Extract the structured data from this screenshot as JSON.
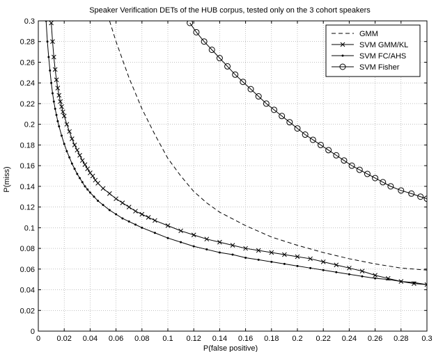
{
  "chart_data": {
    "type": "line",
    "title": "Speaker Verification DETs of the HUB corpus, tested only on the 3 cohort speakers",
    "xlabel": "P(false positive)",
    "ylabel": "P(miss)",
    "xlim": [
      0,
      0.3
    ],
    "ylim": [
      0,
      0.3
    ],
    "xticks": [
      "0",
      "0.02",
      "0.04",
      "0.06",
      "0.08",
      "0.1",
      "0.12",
      "0.14",
      "0.16",
      "0.18",
      "0.2",
      "0.22",
      "0.24",
      "0.26",
      "0.28",
      "0.3"
    ],
    "yticks": [
      "0",
      "0.02",
      "0.04",
      "0.06",
      "0.08",
      "0.1",
      "0.12",
      "0.14",
      "0.16",
      "0.18",
      "0.2",
      "0.22",
      "0.24",
      "0.26",
      "0.28",
      "0.3"
    ],
    "grid": true,
    "legend_position": "top-right",
    "series": [
      {
        "name": "GMM",
        "style": "dashed",
        "marker": "none",
        "points": [
          [
            0.055,
            0.3
          ],
          [
            0.06,
            0.28
          ],
          [
            0.07,
            0.245
          ],
          [
            0.08,
            0.215
          ],
          [
            0.09,
            0.19
          ],
          [
            0.1,
            0.167
          ],
          [
            0.11,
            0.15
          ],
          [
            0.12,
            0.135
          ],
          [
            0.13,
            0.124
          ],
          [
            0.14,
            0.115
          ],
          [
            0.16,
            0.102
          ],
          [
            0.18,
            0.091
          ],
          [
            0.2,
            0.083
          ],
          [
            0.22,
            0.076
          ],
          [
            0.24,
            0.07
          ],
          [
            0.26,
            0.065
          ],
          [
            0.28,
            0.061
          ],
          [
            0.3,
            0.059
          ]
        ]
      },
      {
        "name": "SVM GMM/KL",
        "style": "solid",
        "marker": "x",
        "points": [
          [
            0.01,
            0.298
          ],
          [
            0.011,
            0.28
          ],
          [
            0.012,
            0.265
          ],
          [
            0.013,
            0.253
          ],
          [
            0.014,
            0.243
          ],
          [
            0.015,
            0.235
          ],
          [
            0.016,
            0.228
          ],
          [
            0.017,
            0.222
          ],
          [
            0.018,
            0.217
          ],
          [
            0.019,
            0.212
          ],
          [
            0.02,
            0.208
          ],
          [
            0.022,
            0.2
          ],
          [
            0.024,
            0.193
          ],
          [
            0.026,
            0.186
          ],
          [
            0.028,
            0.18
          ],
          [
            0.03,
            0.175
          ],
          [
            0.032,
            0.17
          ],
          [
            0.034,
            0.165
          ],
          [
            0.036,
            0.161
          ],
          [
            0.038,
            0.157
          ],
          [
            0.04,
            0.153
          ],
          [
            0.042,
            0.15
          ],
          [
            0.044,
            0.146
          ],
          [
            0.046,
            0.143
          ],
          [
            0.05,
            0.138
          ],
          [
            0.055,
            0.133
          ],
          [
            0.06,
            0.128
          ],
          [
            0.065,
            0.124
          ],
          [
            0.07,
            0.12
          ],
          [
            0.075,
            0.116
          ],
          [
            0.08,
            0.113
          ],
          [
            0.085,
            0.11
          ],
          [
            0.09,
            0.107
          ],
          [
            0.1,
            0.102
          ],
          [
            0.11,
            0.097
          ],
          [
            0.12,
            0.093
          ],
          [
            0.13,
            0.089
          ],
          [
            0.14,
            0.086
          ],
          [
            0.15,
            0.083
          ],
          [
            0.16,
            0.08
          ],
          [
            0.17,
            0.078
          ],
          [
            0.18,
            0.076
          ],
          [
            0.19,
            0.074
          ],
          [
            0.2,
            0.072
          ],
          [
            0.21,
            0.07
          ],
          [
            0.22,
            0.067
          ],
          [
            0.23,
            0.064
          ],
          [
            0.24,
            0.061
          ],
          [
            0.25,
            0.058
          ],
          [
            0.26,
            0.054
          ],
          [
            0.27,
            0.051
          ],
          [
            0.28,
            0.048
          ],
          [
            0.29,
            0.046
          ],
          [
            0.3,
            0.045
          ]
        ]
      },
      {
        "name": "SVM FC/AHS",
        "style": "solid",
        "marker": "dot",
        "points": [
          [
            0.006,
            0.3
          ],
          [
            0.007,
            0.28
          ],
          [
            0.008,
            0.265
          ],
          [
            0.009,
            0.252
          ],
          [
            0.01,
            0.24
          ],
          [
            0.011,
            0.23
          ],
          [
            0.012,
            0.222
          ],
          [
            0.013,
            0.215
          ],
          [
            0.014,
            0.209
          ],
          [
            0.015,
            0.203
          ],
          [
            0.016,
            0.198
          ],
          [
            0.018,
            0.189
          ],
          [
            0.02,
            0.181
          ],
          [
            0.022,
            0.174
          ],
          [
            0.024,
            0.168
          ],
          [
            0.026,
            0.162
          ],
          [
            0.028,
            0.157
          ],
          [
            0.03,
            0.152
          ],
          [
            0.032,
            0.148
          ],
          [
            0.034,
            0.144
          ],
          [
            0.036,
            0.14
          ],
          [
            0.038,
            0.137
          ],
          [
            0.04,
            0.134
          ],
          [
            0.043,
            0.13
          ],
          [
            0.046,
            0.126
          ],
          [
            0.05,
            0.122
          ],
          [
            0.055,
            0.117
          ],
          [
            0.06,
            0.113
          ],
          [
            0.065,
            0.109
          ],
          [
            0.07,
            0.106
          ],
          [
            0.075,
            0.103
          ],
          [
            0.08,
            0.1
          ],
          [
            0.09,
            0.095
          ],
          [
            0.1,
            0.09
          ],
          [
            0.11,
            0.086
          ],
          [
            0.12,
            0.082
          ],
          [
            0.13,
            0.079
          ],
          [
            0.14,
            0.076
          ],
          [
            0.15,
            0.074
          ],
          [
            0.16,
            0.071
          ],
          [
            0.17,
            0.069
          ],
          [
            0.18,
            0.067
          ],
          [
            0.19,
            0.065
          ],
          [
            0.2,
            0.063
          ],
          [
            0.21,
            0.061
          ],
          [
            0.22,
            0.059
          ],
          [
            0.23,
            0.057
          ],
          [
            0.24,
            0.055
          ],
          [
            0.25,
            0.053
          ],
          [
            0.26,
            0.051
          ],
          [
            0.27,
            0.05
          ],
          [
            0.28,
            0.048
          ],
          [
            0.29,
            0.047
          ],
          [
            0.3,
            0.045
          ]
        ]
      },
      {
        "name": "SVM Fisher",
        "style": "solid",
        "marker": "o",
        "points": [
          [
            0.117,
            0.298
          ],
          [
            0.122,
            0.289
          ],
          [
            0.128,
            0.28
          ],
          [
            0.134,
            0.272
          ],
          [
            0.14,
            0.264
          ],
          [
            0.146,
            0.256
          ],
          [
            0.152,
            0.248
          ],
          [
            0.158,
            0.241
          ],
          [
            0.164,
            0.234
          ],
          [
            0.17,
            0.227
          ],
          [
            0.176,
            0.22
          ],
          [
            0.182,
            0.214
          ],
          [
            0.188,
            0.208
          ],
          [
            0.194,
            0.202
          ],
          [
            0.2,
            0.196
          ],
          [
            0.206,
            0.19
          ],
          [
            0.212,
            0.185
          ],
          [
            0.218,
            0.18
          ],
          [
            0.224,
            0.175
          ],
          [
            0.23,
            0.17
          ],
          [
            0.236,
            0.165
          ],
          [
            0.242,
            0.16
          ],
          [
            0.248,
            0.156
          ],
          [
            0.254,
            0.152
          ],
          [
            0.26,
            0.148
          ],
          [
            0.266,
            0.144
          ],
          [
            0.272,
            0.14
          ],
          [
            0.28,
            0.136
          ],
          [
            0.288,
            0.133
          ],
          [
            0.295,
            0.13
          ],
          [
            0.3,
            0.128
          ]
        ]
      }
    ]
  }
}
